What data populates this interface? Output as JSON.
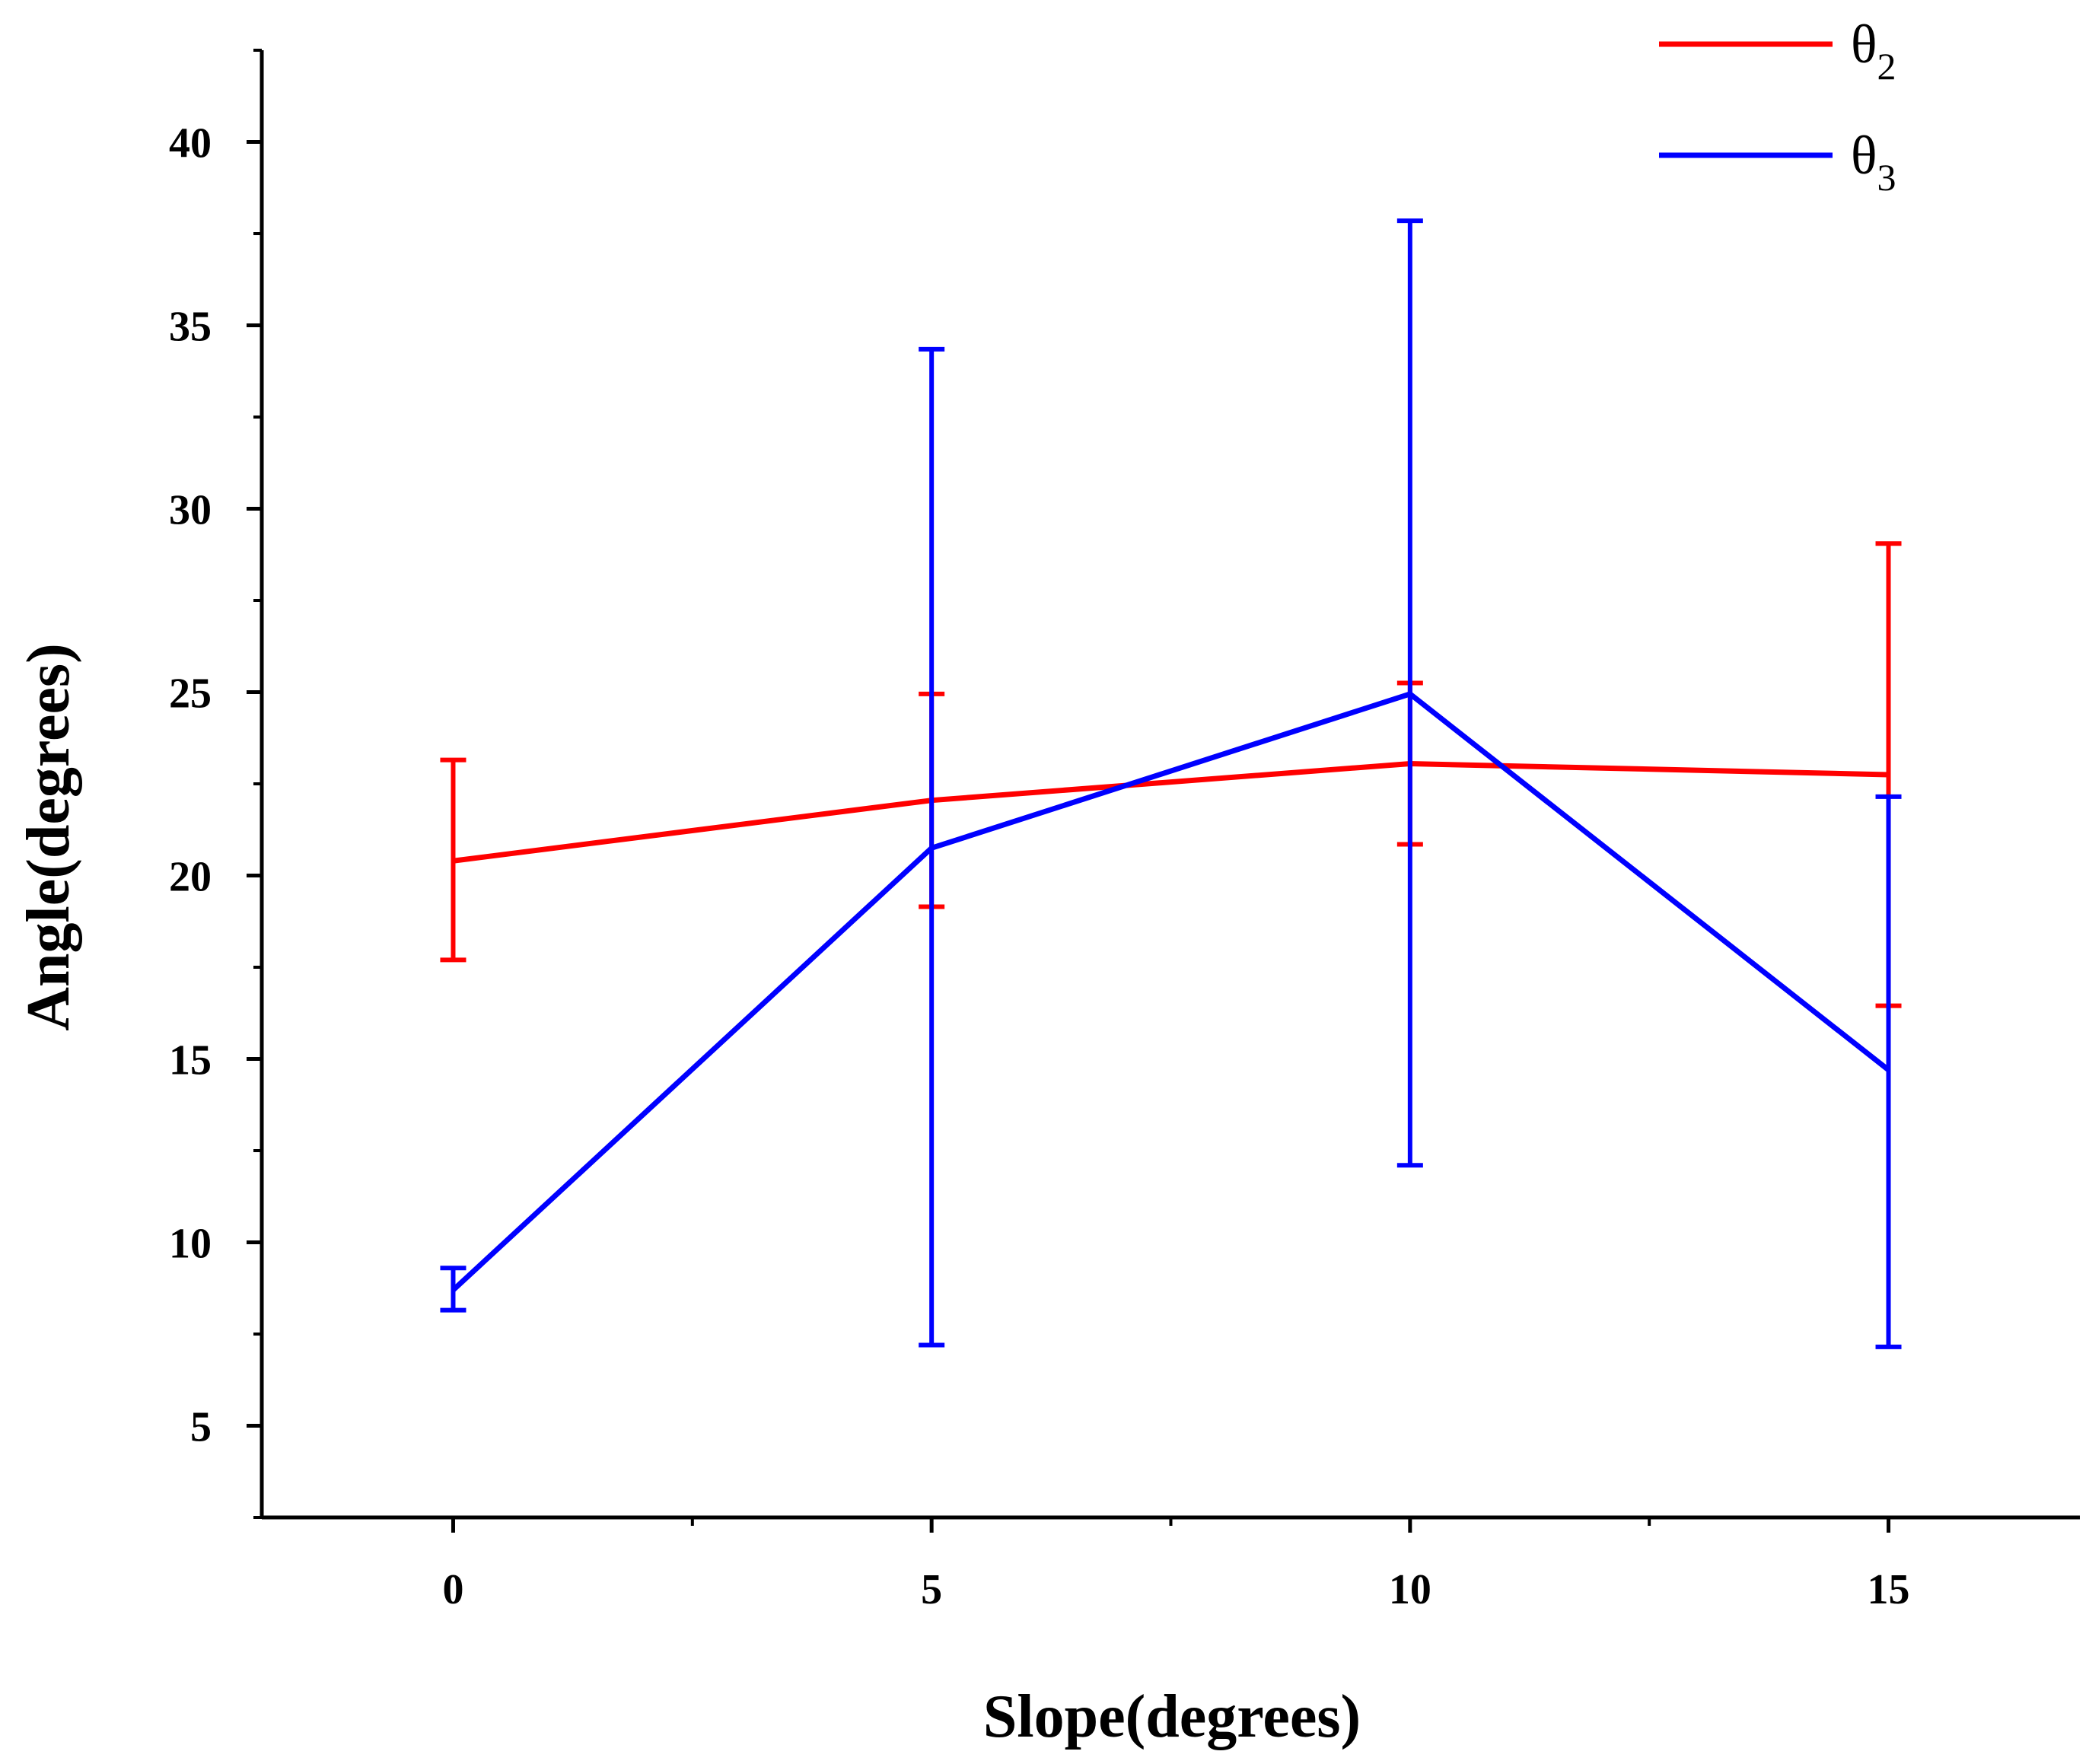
{
  "chart_data": {
    "type": "line",
    "title": "",
    "xlabel": "Slope(degrees)",
    "ylabel": "Angle(degrees)",
    "x": [
      0,
      5,
      10,
      15
    ],
    "xlim": [
      -2,
      17
    ],
    "ylim": [
      2.5,
      42.5
    ],
    "xticks": [
      0,
      5,
      10,
      15
    ],
    "xtick_labels": [
      "0",
      "5",
      "10",
      "15"
    ],
    "yticks": [
      5,
      10,
      15,
      20,
      25,
      30,
      35,
      40
    ],
    "ytick_labels": [
      "5",
      "10",
      "15",
      "20",
      "25",
      "30",
      "35",
      "40"
    ],
    "grid": false,
    "legend_position": "top-right",
    "series": [
      {
        "name": "θ2",
        "legend_symbol": "θ",
        "legend_subscript": "2",
        "color": "#ff0000",
        "values": [
          20.4,
          22.05,
          23.05,
          22.75
        ],
        "error_upper": [
          23.15,
          24.95,
          25.25,
          29.05
        ],
        "error_lower": [
          17.7,
          19.15,
          20.85,
          16.45
        ]
      },
      {
        "name": "θ3",
        "legend_symbol": "θ",
        "legend_subscript": "3",
        "color": "#0000ff",
        "values": [
          8.7,
          20.75,
          24.95,
          14.7
        ],
        "error_upper": [
          9.3,
          34.35,
          37.85,
          22.15
        ],
        "error_lower": [
          8.15,
          7.2,
          12.1,
          7.15
        ]
      }
    ]
  }
}
